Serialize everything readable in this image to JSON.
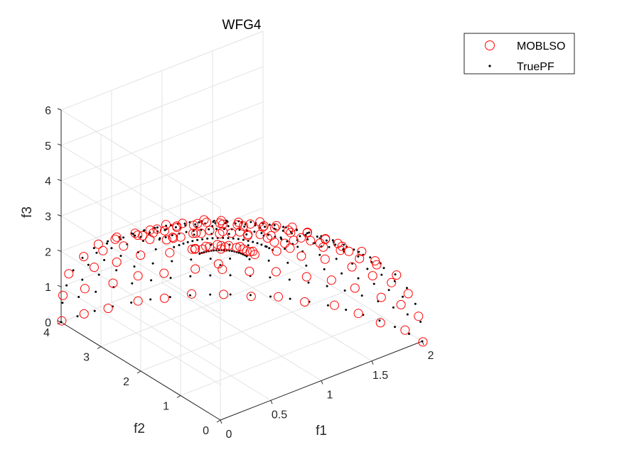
{
  "chart_data": {
    "type": "scatter3d",
    "title": "WFG4",
    "xlabel": "f1",
    "ylabel": "f2",
    "zlabel": "f3",
    "xlim": [
      0,
      2
    ],
    "ylim": [
      0,
      4
    ],
    "zlim": [
      0,
      6
    ],
    "x_ticks": [
      "0",
      "0.5",
      "1",
      "1.5",
      "2"
    ],
    "y_ticks": [
      "0",
      "1",
      "2",
      "3",
      "4"
    ],
    "z_ticks": [
      "0",
      "1",
      "2",
      "3",
      "4",
      "5",
      "6"
    ],
    "grid": true,
    "legend_position": "top-right",
    "shape": "ellipsoid",
    "series": [
      {
        "name": "MOBLSO",
        "marker": "open-circle",
        "color": "#ff0000",
        "description_count": 150,
        "sampling": {
          "theta_steps": 9,
          "phi_steps": 14,
          "radius": [
            2,
            4,
            6
          ]
        }
      },
      {
        "name": "TruePF",
        "marker": "dot",
        "color": "#000000",
        "sampling": {
          "theta_steps": 12,
          "phi_steps": 20,
          "radius": [
            2,
            4,
            6
          ]
        }
      }
    ]
  }
}
